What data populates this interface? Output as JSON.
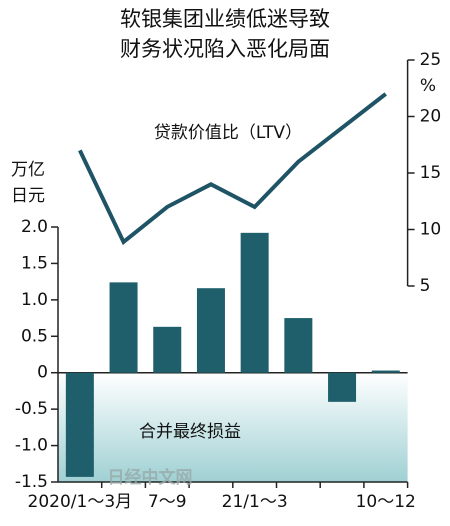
{
  "chart_data": {
    "type": "bar_line",
    "title": [
      "软银集团业绩低迷导致",
      "财务状况陷入恶化局面"
    ],
    "y_label": [
      "万亿",
      "日元"
    ],
    "y2_label": "%",
    "categories": [
      "2020/1～3月",
      null,
      "7～9",
      null,
      "21/1～3",
      null,
      null,
      "10～12"
    ],
    "series": [
      {
        "name": "合并最终损益",
        "color": "#1f5f6b",
        "type": "bar",
        "values": [
          -1.43,
          1.24,
          0.63,
          1.16,
          1.92,
          0.75,
          -0.4,
          0.03
        ]
      },
      {
        "name": "贷款价值比（LTV）",
        "color": "#1e5466",
        "type": "line",
        "axis": "y2",
        "values": [
          17,
          8.9,
          12,
          14,
          12,
          16,
          19,
          22
        ]
      }
    ],
    "ylim": [
      -1.5,
      2.0
    ],
    "yticks": [
      {
        "value": 2.0,
        "label": "2.0"
      },
      1.5,
      {
        "value": 1.0,
        "label": "1.0"
      },
      0.5,
      0,
      -0.5,
      {
        "value": -1.0,
        "label": "-1.0"
      },
      -1.5
    ],
    "y2lim": [
      5,
      25
    ],
    "y2ticks": [
      5,
      10,
      15,
      20,
      25
    ],
    "watermark": "日经中文网"
  }
}
